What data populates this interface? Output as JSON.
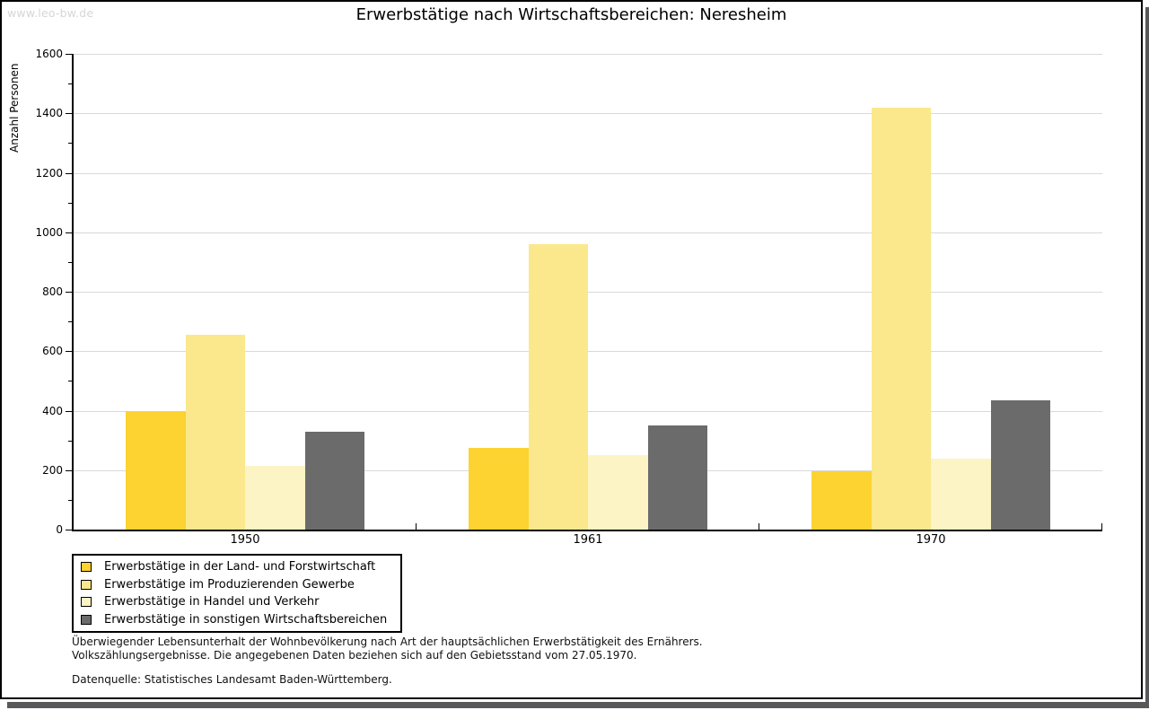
{
  "watermark": "www.leo-bw.de",
  "title": "Erwerbstätige nach Wirtschaftsbereichen: Neresheim",
  "chart_data": {
    "type": "bar",
    "title": "Erwerbstätige nach Wirtschaftsbereichen: Neresheim",
    "xlabel": "",
    "ylabel": "Anzahl Personen",
    "ylim": [
      0,
      1600
    ],
    "yticks": [
      0,
      200,
      400,
      600,
      800,
      1000,
      1200,
      1400,
      1600
    ],
    "ytick_step": 200,
    "minor_tick_step": 100,
    "grid": true,
    "legend_position": "bottom-left",
    "categories": [
      "1950",
      "1961",
      "1970"
    ],
    "series": [
      {
        "name": "Erwerbstätige in der Land- und Forstwirtschaft",
        "color": "#FCD330",
        "values": [
          400,
          275,
          195
        ]
      },
      {
        "name": "Erwerbstätige im Produzierenden Gewerbe",
        "color": "#FBE88C",
        "values": [
          655,
          960,
          1418
        ]
      },
      {
        "name": "Erwerbstätige in Handel und Verkehr",
        "color": "#FCF4C4",
        "values": [
          215,
          250,
          240
        ]
      },
      {
        "name": "Erwerbstätige in sonstigen Wirtschaftsbereichen",
        "color": "#6B6B6B",
        "values": [
          330,
          350,
          435
        ]
      }
    ]
  },
  "footnotes": {
    "line1": "Überwiegender Lebensunterhalt der Wohnbevölkerung nach Art der hauptsächlichen Erwerbstätigkeit des Ernährers.",
    "line2": "Volkszählungsergebnisse. Die angegebenen Daten beziehen sich auf den Gebietsstand vom 27.05.1970.",
    "source": "Datenquelle: Statistisches Landesamt Baden-Württemberg."
  }
}
